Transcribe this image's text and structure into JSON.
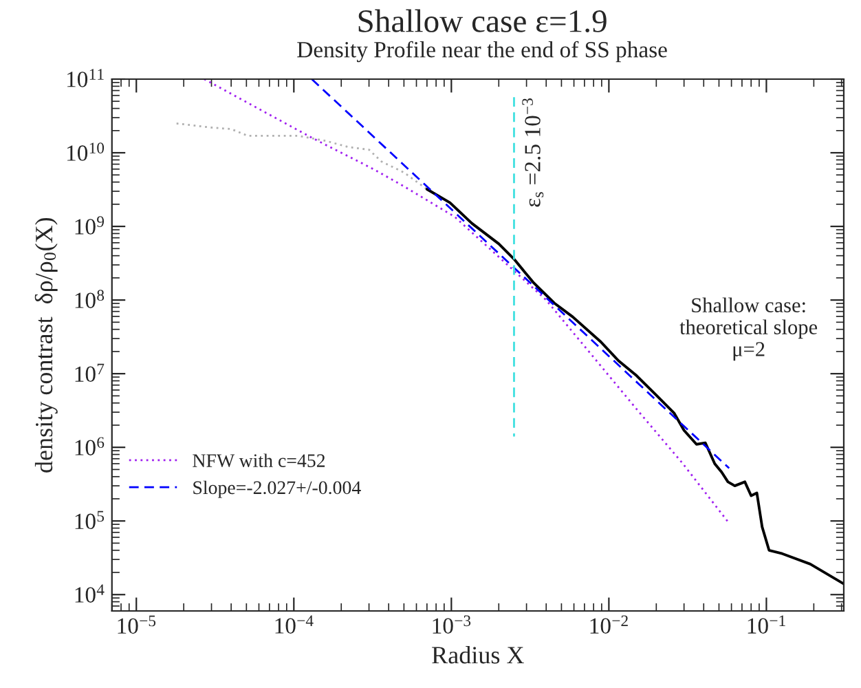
{
  "chart_data": {
    "type": "line",
    "title": "Shallow case ε=1.9",
    "subtitle": "Density Profile near the end of SS phase",
    "xlabel": "Radius X",
    "ylabel": "density contrast  δρ/ρ$_{0}$(X)",
    "log": "xy",
    "grid": false,
    "legend": "bottom left",
    "xlim": [
      7e-06,
      0.31
    ],
    "ylim": [
      6000,
      100000000000.0
    ],
    "xticks": [
      {
        "value": 1e-05,
        "label": "10$^{−5}$"
      },
      {
        "value": 0.0001,
        "label": "10$^{−4}$"
      },
      {
        "value": 0.001,
        "label": "10$^{−3}$"
      },
      {
        "value": 0.01,
        "label": "10$^{−2}$"
      },
      {
        "value": 0.1,
        "label": "10$^{−1}$"
      }
    ],
    "yticks": [
      {
        "value": 10000.0,
        "label": "10$^{4}$"
      },
      {
        "value": 100000.0,
        "label": "10$^{5}$"
      },
      {
        "value": 1000000.0,
        "label": "10$^{6}$"
      },
      {
        "value": 10000000.0,
        "label": "10$^{7}$"
      },
      {
        "value": 100000000.0,
        "label": "10$^{8}$"
      },
      {
        "value": 1000000000.0,
        "label": "10$^{9}$"
      },
      {
        "value": 10000000000.0,
        "label": "10$^{10}$"
      },
      {
        "value": 100000000000.0,
        "label": "10$^{11}$"
      }
    ],
    "series": [
      {
        "color": "#b0b0b0",
        "line_style": "dotted",
        "x": [
          1.8e-05,
          3e-05,
          4e-05,
          5.1e-05,
          6.7e-05,
          0.000107,
          0.00016,
          0.00022,
          0.0003,
          0.00036,
          0.0005,
          0.0007,
          0.00098
        ],
        "values": [
          25000000000.0,
          22000000000.0,
          21000000000.0,
          17000000000.0,
          17000000000.0,
          17000000000.0,
          14500000000.0,
          12000000000.0,
          11000000000.0,
          7600000000.0,
          5400000000.0,
          3200000000.0,
          2100000000.0
        ]
      },
      {
        "color": "#000000",
        "line_style": "solid",
        "x": [
          0.0007,
          0.00098,
          0.00135,
          0.002,
          0.0025,
          0.0033,
          0.0045,
          0.0059,
          0.0089,
          0.0115,
          0.015,
          0.02,
          0.026,
          0.03,
          0.036,
          0.041,
          0.047,
          0.052,
          0.057,
          0.063,
          0.073,
          0.08,
          0.087,
          0.094,
          0.104,
          0.126,
          0.19,
          0.31
        ],
        "values": [
          3200000000.0,
          2100000000.0,
          1100000000.0,
          580000000.0,
          360000000.0,
          175000000.0,
          91000000.0,
          59000000.0,
          27000000.0,
          15000000.0,
          9400000.0,
          5100000.0,
          2900000.0,
          1700000.0,
          1100000.0,
          1150000.0,
          600000.0,
          460000.0,
          340000.0,
          300000.0,
          340000.0,
          220000.0,
          240000.0,
          83000.0,
          40000.0,
          36000.0,
          26000.0,
          14000.0
        ]
      },
      {
        "name": "NFW with c=452",
        "color": "#a020f0",
        "line_style": "dotted",
        "x": [
          2.7e-05,
          0.00013,
          0.00032,
          0.0005,
          0.00105,
          0.004,
          0.015,
          0.0295,
          0.058
        ],
        "values": [
          100000000000.0,
          16000000000.0,
          6000000000.0,
          3500000000.0,
          1350000000.0,
          100000000.0,
          3300000.0,
          600000.0,
          93000.0
        ]
      },
      {
        "name": "Slope=-2.027+/-0.004",
        "color": "#0000ff",
        "line_style": "dashed",
        "x": [
          0.00013,
          0.058
        ],
        "values": [
          100000000000.0,
          520000.0
        ]
      },
      {
        "color": "#40e0e0",
        "line_style": "dashed",
        "x": [
          0.0025,
          0.0025
        ],
        "values": [
          57000000000.0,
          1400000.0
        ]
      }
    ],
    "annotations": [
      {
        "text": "ε$_{s}$ =2.5 10$^{−3}$",
        "x": 0.0025,
        "y": 57000000000.0
      },
      "Shallow case:\ntheoretical slope\nμ=2"
    ]
  }
}
